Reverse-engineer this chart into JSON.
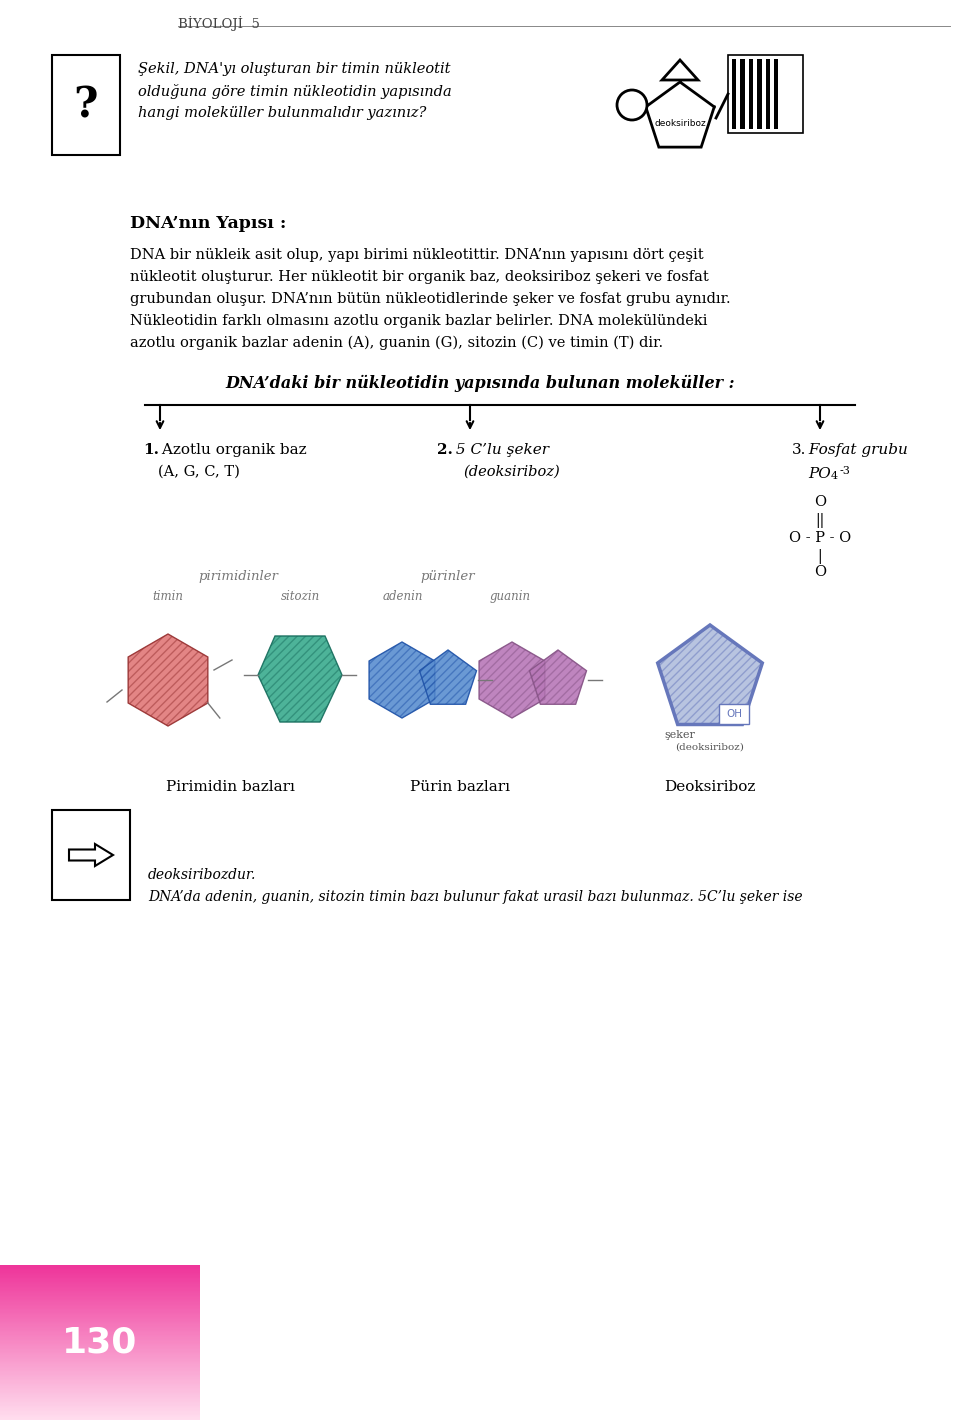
{
  "bg_color": "#ffffff",
  "page_title": "BİYOLOJİ  5",
  "question_box_text": "Şekil, DNA'yı oluşturan bir timin nükleotit\nolduğuna göre timin nükleotidin yapısında\nhangi moleküller bulunmalıdır yazınız?",
  "section_title": "DNA’nın Yapısı :",
  "para1_line1": "DNA bir nükleik asit olup, yapı birimi nükleotittir. DNA’nın yapısını dört çeşit",
  "para1_line2": "nükleotit oluşturur. Her nükleotit bir organik baz, deoksiriboz şekeri ve fosfat",
  "para1_line3": "grubundan oluşur. DNA’nın bütün nükleotidlerinde şeker ve fosfat grubu aynıdır.",
  "para1_line4": "Nükleotidin farklı olmasını azotlu organik bazlar belirler. DNA molekülündeki",
  "para1_line5": "azotlu organik bazlar adenin (A), guanin (G), sitozin (C) ve timin (T) dir.",
  "diagram_title": "DNA’daki bir nükleotidin yapısında bulunan moleküller :",
  "branch1_num": "1.",
  "branch1_text": " Azotlu organik baz",
  "branch1_sub": "(A, G, C, T)",
  "branch2_num": "2.",
  "branch2_text": " 5 C’lu şeker",
  "branch2_sub": "(deoksiriboz)",
  "branch3_num": "3.",
  "branch3_text": " Fosfat grubu",
  "branch3_sub": "PO",
  "branch3_sub2": "4",
  "branch3_sub3": "-3",
  "pyrimidines_label": "pirimidinler",
  "purines_label": "pürinler",
  "timin_label": "timin",
  "sitozin_label": "sitozin",
  "adenin_label": "adenin",
  "guanin_label": "guanin",
  "pirimidin_bazlari": "Pirimidin bazları",
  "purin_bazlari": "Pürin bazları",
  "deoksiriboz_label": "Deoksiriboz",
  "note_text1": "DNA’da adenin, guanin, sitozin timin bazı bulunur fakat urasil bazı bulunmaz. 5C’lu şeker ise",
  "note_text2": "deoksiribozdur.",
  "page_number": "130",
  "timin_color": "#e07878",
  "sitozin_color": "#3aab8e",
  "adenin_color": "#5a8ed0",
  "guanin_color": "#b878b8",
  "deoksiriboz_edge": "#6677bb",
  "deoksiriboz_fill": "#b8c4e0",
  "pink_grad_top": "#ee3399",
  "pink_grad_bot": "#ffddee",
  "text_color": "#222222"
}
